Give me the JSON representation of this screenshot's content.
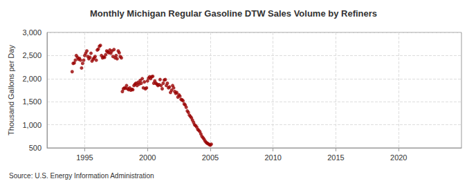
{
  "chart_data": {
    "type": "scatter",
    "title": "Monthly Michigan Regular Gasoline DTW Sales Volume by Refiners",
    "y_label": "Thousand Gallons per Day",
    "source": "Source: U.S. Energy Information Administration",
    "x": [
      1994.0,
      1994.08,
      1994.17,
      1994.25,
      1994.33,
      1994.42,
      1994.5,
      1994.58,
      1994.67,
      1994.75,
      1994.83,
      1994.92,
      1995.0,
      1995.08,
      1995.17,
      1995.25,
      1995.33,
      1995.42,
      1995.5,
      1995.58,
      1995.67,
      1995.75,
      1995.83,
      1995.92,
      1996.0,
      1996.08,
      1996.17,
      1996.25,
      1996.33,
      1996.42,
      1996.5,
      1996.58,
      1996.67,
      1996.75,
      1996.83,
      1996.92,
      1997.0,
      1997.08,
      1997.17,
      1997.25,
      1997.33,
      1997.42,
      1997.5,
      1997.58,
      1997.67,
      1997.75,
      1997.83,
      1997.92,
      1998.0,
      1998.08,
      1998.17,
      1998.25,
      1998.33,
      1998.42,
      1998.5,
      1998.58,
      1998.67,
      1998.75,
      1998.83,
      1998.92,
      1999.0,
      1999.08,
      1999.17,
      1999.25,
      1999.33,
      1999.42,
      1999.5,
      1999.58,
      1999.67,
      1999.75,
      1999.83,
      1999.92,
      2000.0,
      2000.08,
      2000.17,
      2000.25,
      2000.33,
      2000.42,
      2000.5,
      2000.58,
      2000.67,
      2000.75,
      2000.83,
      2000.92,
      2001.0,
      2001.08,
      2001.17,
      2001.25,
      2001.33,
      2001.42,
      2001.5,
      2001.58,
      2001.67,
      2001.75,
      2001.83,
      2001.92,
      2002.0,
      2002.08,
      2002.17,
      2002.25,
      2002.33,
      2002.42,
      2002.5,
      2002.58,
      2002.67,
      2002.75,
      2002.83,
      2002.92,
      2003.0,
      2003.08,
      2003.17,
      2003.25,
      2003.33,
      2003.42,
      2003.5,
      2003.58,
      2003.67,
      2003.75,
      2003.83,
      2003.92,
      2004.0,
      2004.08,
      2004.17,
      2004.25,
      2004.33,
      2004.42,
      2004.5,
      2004.58,
      2004.67,
      2004.75,
      2004.83,
      2004.92,
      2005.0,
      2005.08
    ],
    "values": [
      2150,
      2330,
      2340,
      2400,
      2500,
      2460,
      2420,
      2440,
      2400,
      2230,
      2330,
      2400,
      2500,
      2550,
      2600,
      2480,
      2430,
      2460,
      2550,
      2380,
      2420,
      2450,
      2480,
      2400,
      2620,
      2640,
      2700,
      2720,
      2500,
      2450,
      2470,
      2460,
      2520,
      2600,
      2580,
      2560,
      2620,
      2550,
      2600,
      2480,
      2630,
      2450,
      2500,
      2430,
      2600,
      2560,
      2480,
      2450,
      1720,
      1780,
      1800,
      1790,
      1850,
      1780,
      1760,
      1800,
      1750,
      1770,
      1760,
      1850,
      1880,
      1900,
      1850,
      1920,
      1880,
      1960,
      1900,
      2000,
      1800,
      1930,
      1780,
      1800,
      1950,
      2010,
      2040,
      2000,
      2040,
      2050,
      1900,
      1950,
      1900,
      1880,
      1850,
      1870,
      1980,
      1850,
      1780,
      1900,
      1970,
      1980,
      1850,
      1900,
      1800,
      1820,
      1700,
      1750,
      1850,
      1800,
      1720,
      1680,
      1700,
      1600,
      1650,
      1620,
      1550,
      1540,
      1520,
      1450,
      1430,
      1380,
      1300,
      1270,
      1210,
      1180,
      1150,
      1100,
      1050,
      1000,
      980,
      950,
      900,
      880,
      850,
      800,
      750,
      720,
      690,
      650,
      620,
      600,
      590,
      570,
      560,
      580
    ],
    "color": "#990000",
    "marker": "circle",
    "xlim": [
      1992,
      2025
    ],
    "xticks": [
      1995,
      2000,
      2005,
      2010,
      2015,
      2020
    ],
    "ylim": [
      500,
      3000
    ],
    "yticks": [
      500,
      {
        "value": 1000,
        "label": "1,000"
      },
      {
        "value": 1500,
        "label": "1,500"
      },
      {
        "value": 2000,
        "label": "2,000"
      },
      {
        "value": 2500,
        "label": "2,500"
      },
      {
        "value": 3000,
        "label": "3,000"
      }
    ],
    "grid": true
  }
}
